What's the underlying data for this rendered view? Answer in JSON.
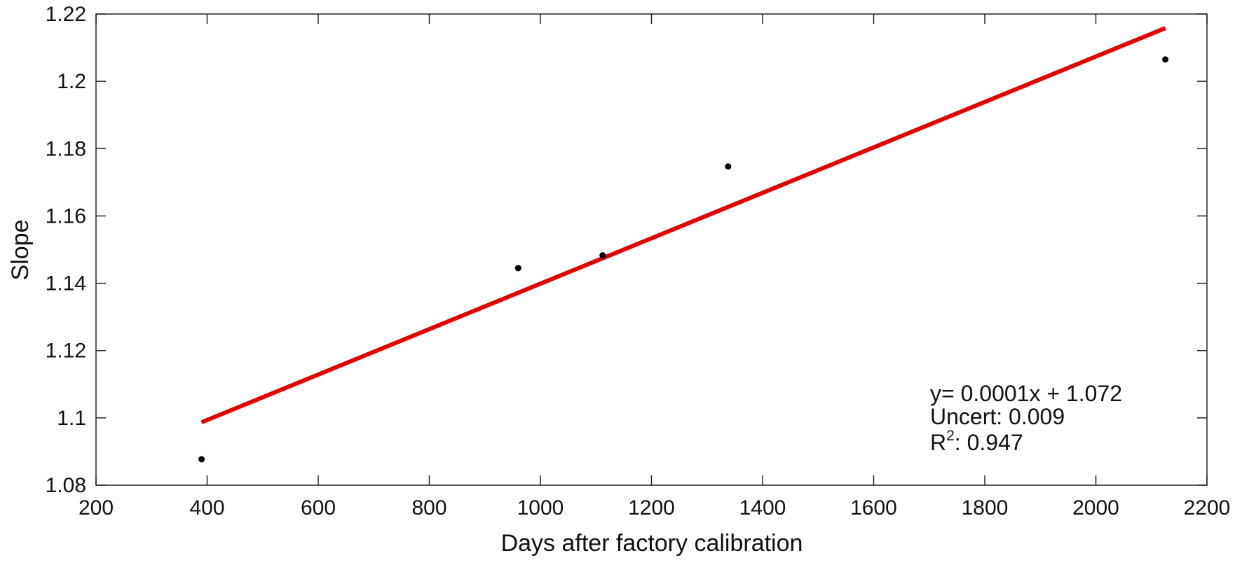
{
  "chart_data": {
    "type": "scatter",
    "title": "",
    "xlabel": "Days after factory calibration",
    "ylabel": "Slope",
    "xlim": [
      200,
      2200
    ],
    "ylim": [
      1.08,
      1.22
    ],
    "xticks": [
      200,
      400,
      600,
      800,
      1000,
      1200,
      1400,
      1600,
      1800,
      2000,
      2200
    ],
    "yticks": [
      1.08,
      1.1,
      1.12,
      1.14,
      1.16,
      1.18,
      1.2,
      1.22
    ],
    "xtick_labels": [
      "200",
      "400",
      "600",
      "800",
      "1000",
      "1200",
      "1400",
      "1600",
      "1800",
      "2000",
      "2200"
    ],
    "ytick_labels": [
      "1.08",
      "1.1",
      "1.12",
      "1.14",
      "1.16",
      "1.18",
      "1.2",
      "1.22"
    ],
    "grid": false,
    "points": [
      {
        "x": 390,
        "y": 1.0877
      },
      {
        "x": 960,
        "y": 1.1445
      },
      {
        "x": 1112,
        "y": 1.1483
      },
      {
        "x": 1338,
        "y": 1.1747
      },
      {
        "x": 2125,
        "y": 1.2065
      }
    ],
    "fit_line": {
      "x": [
        390,
        2125
      ],
      "y": [
        1.0987,
        1.2158
      ]
    },
    "colors": {
      "points": "#000000",
      "fit_line": "#e50000",
      "axes": "#222222"
    },
    "annotations": {
      "equation": "y= 0.0001x + 1.072",
      "uncert": "Uncert: 0.009",
      "r2_prefix": "R",
      "r2_sup": "2",
      "r2_value": ": 0.947"
    }
  }
}
